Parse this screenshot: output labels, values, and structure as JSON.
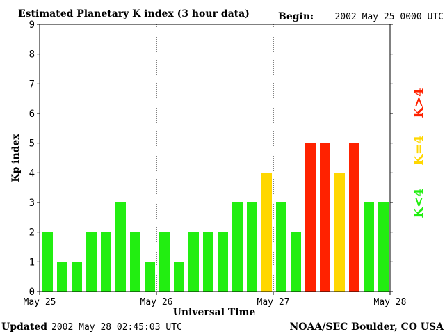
{
  "header": {
    "title": "Estimated Planetary K index (3 hour data)",
    "begin_label": "Begin:",
    "begin_value": "2002 May 25 0000 UTC"
  },
  "footer": {
    "updated_label": "Updated",
    "updated_value": "2002 May 28 02:45:03 UTC",
    "source": "NOAA/SEC Boulder, CO USA"
  },
  "legend": {
    "above": "K>4",
    "equal": "K=4",
    "below": "K<4"
  },
  "colors": {
    "below": "#22ee11",
    "equal": "#ffd700",
    "above": "#ff2200",
    "axis": "#000000",
    "background": "#ffffff"
  },
  "chart_data": {
    "type": "bar",
    "title": "Estimated Planetary K index (3 hour data)",
    "xlabel": "Universal Time",
    "ylabel": "Kp index",
    "ylim": [
      0,
      9
    ],
    "yticks": [
      0,
      1,
      2,
      3,
      4,
      5,
      6,
      7,
      8,
      9
    ],
    "xtick_labels": [
      "May 25",
      "May 26",
      "May 27",
      "May 28"
    ],
    "day_dividers": [
      "May 26",
      "May 27"
    ],
    "interval_hours": 3,
    "values": [
      2,
      1,
      1,
      2,
      2,
      3,
      2,
      1,
      2,
      1,
      2,
      2,
      2,
      3,
      3,
      4,
      3,
      2,
      5,
      5,
      4,
      5,
      3,
      3
    ],
    "color_rule": "green K<4, yellow K=4, red K>4"
  }
}
